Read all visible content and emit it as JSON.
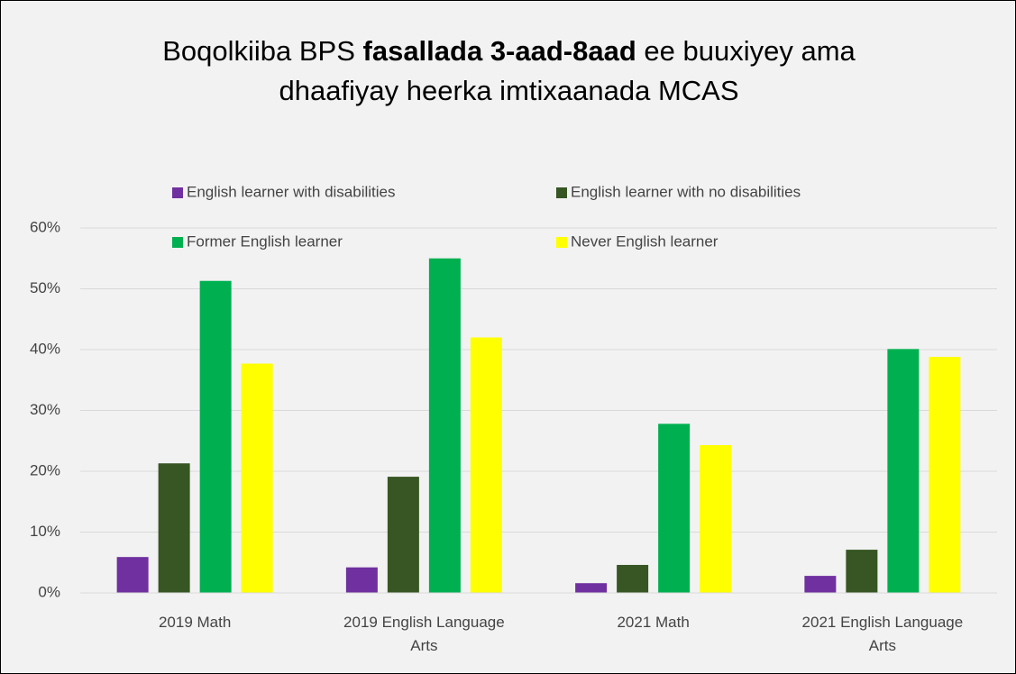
{
  "chart_data": {
    "type": "bar",
    "title_parts": [
      "Boqolkiiba BPS",
      "fasallada 3-aad-8aad",
      "ee buuxiyey ama",
      "dhaafiyay heerka imtixaanada MCAS"
    ],
    "categories": [
      "2019 Math",
      "2019 English Language Arts",
      "2021 Math",
      "2021 English Language Arts"
    ],
    "series": [
      {
        "name": "English learner with disabilities",
        "color": "#7030a0",
        "values": [
          5.9,
          4.2,
          1.6,
          2.8
        ]
      },
      {
        "name": "English learner with no disabilities",
        "color": "#375623",
        "values": [
          21.3,
          19.1,
          4.6,
          7.1
        ]
      },
      {
        "name": "Former English learner",
        "color": "#00b050",
        "values": [
          51.3,
          55.0,
          27.8,
          40.1
        ]
      },
      {
        "name": "Never English learner",
        "color": "#ffff00",
        "values": [
          37.7,
          42.0,
          24.3,
          38.8
        ]
      }
    ],
    "ylim": [
      0,
      60
    ],
    "yticks": [
      {
        "value": 0,
        "label": "0%"
      },
      {
        "value": 10,
        "label": "10%"
      },
      {
        "value": 20,
        "label": "20%"
      },
      {
        "value": 30,
        "label": "30%"
      },
      {
        "value": 40,
        "label": "40%"
      },
      {
        "value": 50,
        "label": "50%"
      },
      {
        "value": 60,
        "label": "60%"
      }
    ],
    "grid": true,
    "legend": "top"
  }
}
